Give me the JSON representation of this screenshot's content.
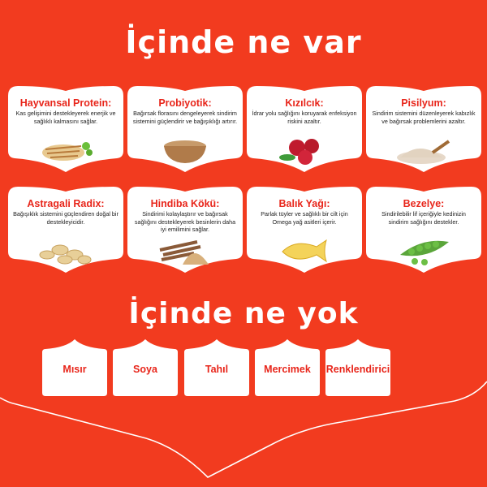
{
  "header": {
    "title": "İçinde ne var"
  },
  "ingredients": [
    {
      "title": "Hayvansal Protein:",
      "desc": "Kas gelişimini destekleyerek enerjik ve sağlıklı kalmasını sağlar.",
      "icon": "chicken-breast-icon"
    },
    {
      "title": "Probiyotik:",
      "desc": "Bağırsak florasını dengeleyerek sindirim sistemini güçlendirir ve bağışıklığı artırır.",
      "icon": "powder-bowl-icon"
    },
    {
      "title": "Kızılcık:",
      "desc": "İdrar yolu sağlığını koruyarak enfeksiyon riskini azaltır.",
      "icon": "cranberry-icon"
    },
    {
      "title": "Pisilyum:",
      "desc": "Sindirim sistemini düzenleyerek kabızlık ve bağırsak problemlerini azaltır.",
      "icon": "psyllium-scoop-icon"
    },
    {
      "title": "Astragali Radix:",
      "desc": "Bağışıklık sistemini güçlendiren doğal bir destekleyicidir.",
      "icon": "root-slices-icon"
    },
    {
      "title": "Hindiba Kökü:",
      "desc": "Sindirimi kolaylaştırır ve bağırsak sağlığını destekleyerek besinlerin daha iyi emilimini sağlar.",
      "icon": "chicory-root-icon"
    },
    {
      "title": "Balık Yağı:",
      "desc": "Parlak tüyler ve sağlıklı bir cilt için Omega yağ asitleri içerir.",
      "icon": "fish-oil-capsule-icon"
    },
    {
      "title": "Bezelye:",
      "desc": "Sindirilebilir lif içeriğiyle kedinizin sindirim sağlığını destekler.",
      "icon": "pea-pod-icon"
    }
  ],
  "excluded": {
    "title": "İçinde ne yok",
    "items": [
      "Mısır",
      "Soya",
      "Tahıl",
      "Mercimek",
      "Renklendirici"
    ]
  },
  "colors": {
    "background": "#f23b1f",
    "accent": "#e8261b",
    "card": "#ffffff"
  }
}
